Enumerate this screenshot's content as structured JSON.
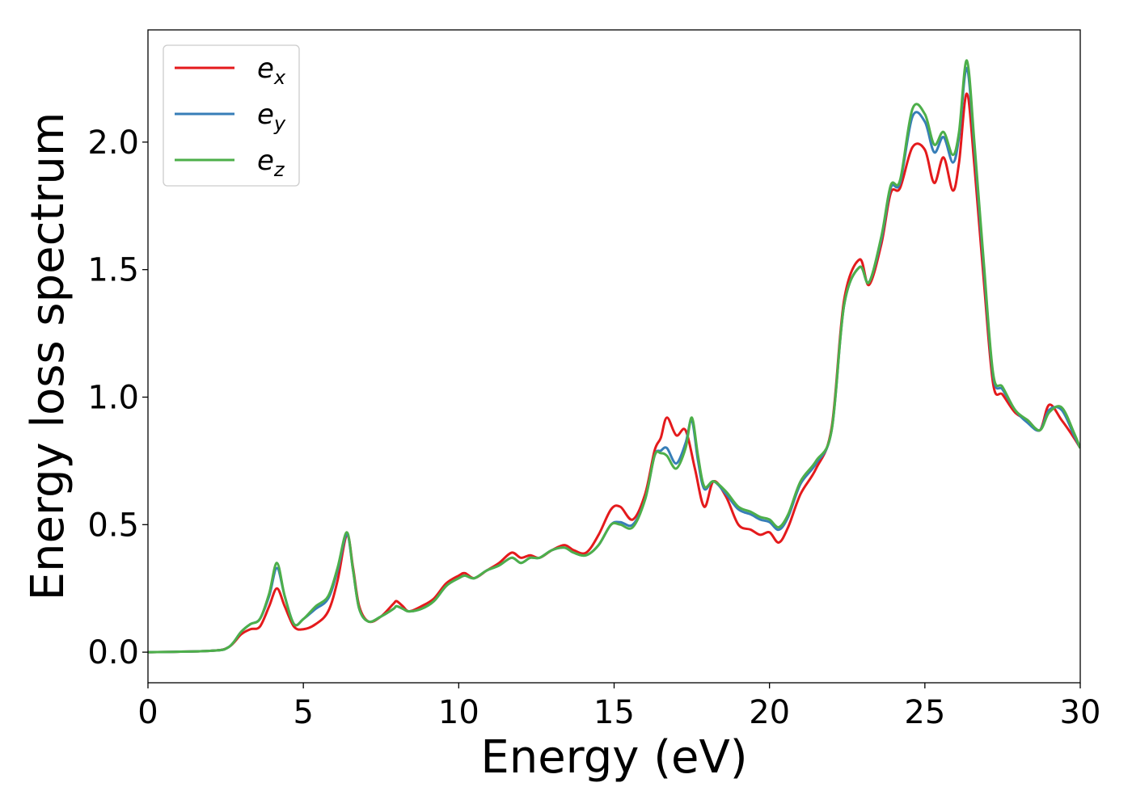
{
  "chart_data": {
    "type": "line",
    "title": "",
    "xlabel": "Energy (eV)",
    "ylabel": "Energy loss spectrum",
    "xlim": [
      0,
      30
    ],
    "ylim": [
      -0.12,
      2.44
    ],
    "xticks": [
      0,
      5,
      10,
      15,
      20,
      25,
      30
    ],
    "xtick_labels": [
      "0",
      "5",
      "10",
      "15",
      "20",
      "25",
      "30"
    ],
    "yticks": [
      0.0,
      0.5,
      1.0,
      1.5,
      2.0
    ],
    "ytick_labels": [
      "0.0",
      "0.5",
      "1.0",
      "1.5",
      "2.0"
    ],
    "grid": false,
    "legend_position": "top-left",
    "series": [
      {
        "name": "e_x",
        "label_base": "e",
        "label_sub": "x",
        "color": "#e41a1c",
        "points": [
          [
            0,
            0.0
          ],
          [
            2.0,
            0.005
          ],
          [
            2.6,
            0.02
          ],
          [
            3.0,
            0.07
          ],
          [
            3.3,
            0.09
          ],
          [
            3.6,
            0.1
          ],
          [
            3.9,
            0.18
          ],
          [
            4.15,
            0.25
          ],
          [
            4.4,
            0.18
          ],
          [
            4.7,
            0.1
          ],
          [
            5.0,
            0.09
          ],
          [
            5.4,
            0.11
          ],
          [
            5.8,
            0.16
          ],
          [
            6.1,
            0.28
          ],
          [
            6.4,
            0.46
          ],
          [
            6.6,
            0.33
          ],
          [
            6.8,
            0.18
          ],
          [
            7.1,
            0.12
          ],
          [
            7.5,
            0.14
          ],
          [
            7.9,
            0.19
          ],
          [
            8.0,
            0.2
          ],
          [
            8.2,
            0.18
          ],
          [
            8.4,
            0.16
          ],
          [
            8.8,
            0.18
          ],
          [
            9.2,
            0.21
          ],
          [
            9.6,
            0.27
          ],
          [
            10.0,
            0.3
          ],
          [
            10.2,
            0.31
          ],
          [
            10.5,
            0.29
          ],
          [
            10.9,
            0.32
          ],
          [
            11.3,
            0.35
          ],
          [
            11.7,
            0.39
          ],
          [
            12.0,
            0.37
          ],
          [
            12.3,
            0.38
          ],
          [
            12.6,
            0.37
          ],
          [
            13.0,
            0.4
          ],
          [
            13.4,
            0.42
          ],
          [
            13.7,
            0.4
          ],
          [
            14.1,
            0.39
          ],
          [
            14.5,
            0.46
          ],
          [
            14.9,
            0.56
          ],
          [
            15.2,
            0.57
          ],
          [
            15.6,
            0.52
          ],
          [
            16.0,
            0.62
          ],
          [
            16.3,
            0.79
          ],
          [
            16.5,
            0.84
          ],
          [
            16.7,
            0.92
          ],
          [
            17.0,
            0.85
          ],
          [
            17.3,
            0.87
          ],
          [
            17.6,
            0.72
          ],
          [
            17.9,
            0.57
          ],
          [
            18.2,
            0.67
          ],
          [
            18.6,
            0.61
          ],
          [
            19.0,
            0.5
          ],
          [
            19.4,
            0.48
          ],
          [
            19.7,
            0.46
          ],
          [
            20.0,
            0.47
          ],
          [
            20.3,
            0.43
          ],
          [
            20.6,
            0.49
          ],
          [
            21.0,
            0.62
          ],
          [
            21.5,
            0.72
          ],
          [
            22.0,
            0.88
          ],
          [
            22.4,
            1.38
          ],
          [
            22.9,
            1.54
          ],
          [
            23.2,
            1.44
          ],
          [
            23.6,
            1.6
          ],
          [
            23.9,
            1.8
          ],
          [
            24.2,
            1.82
          ],
          [
            24.6,
            1.98
          ],
          [
            25.0,
            1.97
          ],
          [
            25.3,
            1.84
          ],
          [
            25.6,
            1.94
          ],
          [
            25.9,
            1.81
          ],
          [
            26.1,
            1.92
          ],
          [
            26.35,
            2.19
          ],
          [
            26.6,
            1.9
          ],
          [
            26.9,
            1.45
          ],
          [
            27.2,
            1.05
          ],
          [
            27.5,
            1.01
          ],
          [
            27.9,
            0.94
          ],
          [
            28.3,
            0.91
          ],
          [
            28.7,
            0.87
          ],
          [
            29.0,
            0.97
          ],
          [
            29.4,
            0.91
          ],
          [
            29.8,
            0.84
          ],
          [
            30.0,
            0.8
          ]
        ]
      },
      {
        "name": "e_y",
        "label_base": "e",
        "label_sub": "y",
        "color": "#377eb8",
        "points": [
          [
            0,
            0.0
          ],
          [
            2.0,
            0.005
          ],
          [
            2.6,
            0.02
          ],
          [
            3.0,
            0.08
          ],
          [
            3.3,
            0.11
          ],
          [
            3.6,
            0.13
          ],
          [
            3.9,
            0.22
          ],
          [
            4.15,
            0.33
          ],
          [
            4.4,
            0.22
          ],
          [
            4.7,
            0.11
          ],
          [
            5.0,
            0.13
          ],
          [
            5.4,
            0.17
          ],
          [
            5.8,
            0.21
          ],
          [
            6.1,
            0.32
          ],
          [
            6.4,
            0.46
          ],
          [
            6.6,
            0.32
          ],
          [
            6.8,
            0.17
          ],
          [
            7.1,
            0.12
          ],
          [
            7.5,
            0.14
          ],
          [
            7.9,
            0.17
          ],
          [
            8.0,
            0.18
          ],
          [
            8.2,
            0.17
          ],
          [
            8.4,
            0.16
          ],
          [
            8.8,
            0.17
          ],
          [
            9.2,
            0.2
          ],
          [
            9.6,
            0.26
          ],
          [
            10.0,
            0.29
          ],
          [
            10.2,
            0.3
          ],
          [
            10.5,
            0.29
          ],
          [
            10.9,
            0.32
          ],
          [
            11.3,
            0.34
          ],
          [
            11.7,
            0.37
          ],
          [
            12.0,
            0.35
          ],
          [
            12.3,
            0.37
          ],
          [
            12.6,
            0.37
          ],
          [
            13.0,
            0.4
          ],
          [
            13.4,
            0.41
          ],
          [
            13.7,
            0.39
          ],
          [
            14.1,
            0.38
          ],
          [
            14.5,
            0.42
          ],
          [
            14.9,
            0.5
          ],
          [
            15.2,
            0.51
          ],
          [
            15.6,
            0.5
          ],
          [
            16.0,
            0.6
          ],
          [
            16.3,
            0.77
          ],
          [
            16.5,
            0.79
          ],
          [
            16.7,
            0.8
          ],
          [
            17.0,
            0.74
          ],
          [
            17.3,
            0.82
          ],
          [
            17.5,
            0.91
          ],
          [
            17.7,
            0.75
          ],
          [
            17.9,
            0.64
          ],
          [
            18.2,
            0.67
          ],
          [
            18.6,
            0.62
          ],
          [
            19.0,
            0.56
          ],
          [
            19.4,
            0.54
          ],
          [
            19.7,
            0.52
          ],
          [
            20.0,
            0.51
          ],
          [
            20.3,
            0.48
          ],
          [
            20.6,
            0.53
          ],
          [
            21.0,
            0.66
          ],
          [
            21.5,
            0.74
          ],
          [
            22.0,
            0.87
          ],
          [
            22.4,
            1.36
          ],
          [
            22.9,
            1.51
          ],
          [
            23.2,
            1.45
          ],
          [
            23.6,
            1.62
          ],
          [
            23.9,
            1.82
          ],
          [
            24.2,
            1.84
          ],
          [
            24.6,
            2.1
          ],
          [
            25.0,
            2.08
          ],
          [
            25.3,
            1.96
          ],
          [
            25.6,
            2.02
          ],
          [
            25.9,
            1.92
          ],
          [
            26.1,
            2.02
          ],
          [
            26.35,
            2.29
          ],
          [
            26.6,
            1.97
          ],
          [
            26.9,
            1.5
          ],
          [
            27.2,
            1.08
          ],
          [
            27.5,
            1.03
          ],
          [
            27.9,
            0.95
          ],
          [
            28.3,
            0.9
          ],
          [
            28.7,
            0.87
          ],
          [
            29.0,
            0.95
          ],
          [
            29.4,
            0.95
          ],
          [
            29.8,
            0.85
          ],
          [
            30.0,
            0.8
          ]
        ]
      },
      {
        "name": "e_z",
        "label_base": "e",
        "label_sub": "z",
        "color": "#4daf4a",
        "points": [
          [
            0,
            0.0
          ],
          [
            2.0,
            0.005
          ],
          [
            2.6,
            0.02
          ],
          [
            3.0,
            0.08
          ],
          [
            3.3,
            0.11
          ],
          [
            3.6,
            0.13
          ],
          [
            3.9,
            0.23
          ],
          [
            4.15,
            0.35
          ],
          [
            4.4,
            0.22
          ],
          [
            4.7,
            0.11
          ],
          [
            5.0,
            0.13
          ],
          [
            5.4,
            0.18
          ],
          [
            5.8,
            0.22
          ],
          [
            6.1,
            0.33
          ],
          [
            6.4,
            0.47
          ],
          [
            6.6,
            0.32
          ],
          [
            6.8,
            0.17
          ],
          [
            7.1,
            0.12
          ],
          [
            7.5,
            0.14
          ],
          [
            7.9,
            0.17
          ],
          [
            8.0,
            0.18
          ],
          [
            8.2,
            0.17
          ],
          [
            8.4,
            0.16
          ],
          [
            8.8,
            0.17
          ],
          [
            9.2,
            0.2
          ],
          [
            9.6,
            0.26
          ],
          [
            10.0,
            0.29
          ],
          [
            10.2,
            0.3
          ],
          [
            10.5,
            0.29
          ],
          [
            10.9,
            0.32
          ],
          [
            11.3,
            0.34
          ],
          [
            11.7,
            0.37
          ],
          [
            12.0,
            0.35
          ],
          [
            12.3,
            0.37
          ],
          [
            12.6,
            0.37
          ],
          [
            13.0,
            0.4
          ],
          [
            13.4,
            0.41
          ],
          [
            13.7,
            0.39
          ],
          [
            14.1,
            0.38
          ],
          [
            14.5,
            0.42
          ],
          [
            14.9,
            0.5
          ],
          [
            15.2,
            0.5
          ],
          [
            15.6,
            0.49
          ],
          [
            16.0,
            0.6
          ],
          [
            16.3,
            0.77
          ],
          [
            16.5,
            0.78
          ],
          [
            16.7,
            0.77
          ],
          [
            17.0,
            0.72
          ],
          [
            17.3,
            0.8
          ],
          [
            17.5,
            0.92
          ],
          [
            17.7,
            0.77
          ],
          [
            17.9,
            0.65
          ],
          [
            18.2,
            0.67
          ],
          [
            18.6,
            0.63
          ],
          [
            19.0,
            0.57
          ],
          [
            19.4,
            0.55
          ],
          [
            19.7,
            0.53
          ],
          [
            20.0,
            0.52
          ],
          [
            20.3,
            0.49
          ],
          [
            20.6,
            0.54
          ],
          [
            21.0,
            0.67
          ],
          [
            21.5,
            0.75
          ],
          [
            22.0,
            0.87
          ],
          [
            22.4,
            1.36
          ],
          [
            22.9,
            1.51
          ],
          [
            23.2,
            1.45
          ],
          [
            23.6,
            1.63
          ],
          [
            23.9,
            1.83
          ],
          [
            24.2,
            1.85
          ],
          [
            24.6,
            2.13
          ],
          [
            25.0,
            2.11
          ],
          [
            25.3,
            1.99
          ],
          [
            25.6,
            2.04
          ],
          [
            25.9,
            1.95
          ],
          [
            26.1,
            2.04
          ],
          [
            26.35,
            2.32
          ],
          [
            26.6,
            1.99
          ],
          [
            26.9,
            1.52
          ],
          [
            27.2,
            1.09
          ],
          [
            27.5,
            1.04
          ],
          [
            27.9,
            0.95
          ],
          [
            28.3,
            0.91
          ],
          [
            28.7,
            0.87
          ],
          [
            29.0,
            0.94
          ],
          [
            29.4,
            0.96
          ],
          [
            29.8,
            0.86
          ],
          [
            30.0,
            0.8
          ]
        ]
      }
    ]
  }
}
